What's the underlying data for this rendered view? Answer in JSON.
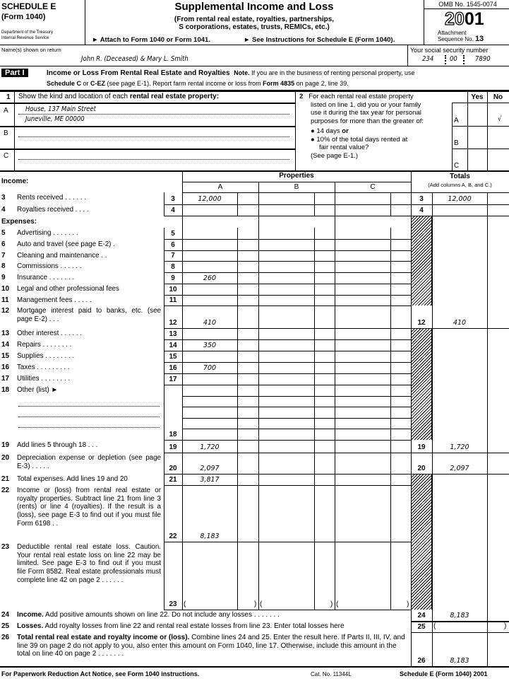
{
  "header": {
    "schedule": "SCHEDULE E",
    "form": "(Form 1040)",
    "dept1": "Department of the Treasury",
    "dept2": "Internal Revenue Service",
    "title": "Supplemental Income and Loss",
    "subtitle1": "(From rental real estate, royalties, partnerships,",
    "subtitle2": "S corporations, estates, trusts, REMICs, etc.)",
    "attach": "► Attach to Form 1040 or Form 1041.",
    "see": "► See Instructions for Schedule E (Form 1040).",
    "omb": "OMB No. 1545-0074",
    "year_outline": "20",
    "year_bold": "01",
    "seq_label1": "Attachment",
    "seq_label2": "Sequence No.",
    "seq_no": "13"
  },
  "taxpayer": {
    "name_label": "Name(s) shown on return",
    "name": "John R. (Deceased) & Mary L. Smith",
    "ssn_label": "Your social security number",
    "ssn1": "234",
    "ssn2": "00",
    "ssn3": "7890"
  },
  "part1": {
    "badge": "Part I",
    "title": "Income or Loss From Rental Real Estate and Royalties",
    "note_b": "Note.",
    "note1": " If you are in the business of renting personal property, use",
    "note2_b1": "Schedule C",
    "note2_t1": " or ",
    "note2_b2": "C-EZ",
    "note2_t2": " (see page E-1). Report farm rental income or loss from ",
    "note2_b3": "Form 4835",
    "note2_t3": " on page 2, line 39."
  },
  "line1": {
    "num": "1",
    "text": "Show the kind and location of each ",
    "bold": "rental real estate property:",
    "rows": [
      {
        "letter": "A",
        "line1": "House, 137 Main Street",
        "line2": "Juneville, ME 00000"
      },
      {
        "letter": "B",
        "line1": "",
        "line2": ""
      },
      {
        "letter": "C",
        "line1": "",
        "line2": ""
      }
    ]
  },
  "line2": {
    "num": "2",
    "text1": "For each rental real estate property",
    "text2": "listed on line 1, did you or your family",
    "text3": "use it during the tax year for personal",
    "text4": "purposes for more than the greater of:",
    "bullet1": "● 14 days ",
    "bullet1_b": "or",
    "bullet2": "● 10% of the total days rented at",
    "bullet2b": "fair rental value?",
    "see": "(See page E-1.)",
    "yes": "Yes",
    "no": "No",
    "answers": [
      {
        "letter": "A",
        "yes": "",
        "no": "√"
      },
      {
        "letter": "B",
        "yes": "",
        "no": ""
      },
      {
        "letter": "C",
        "yes": "",
        "no": ""
      }
    ]
  },
  "columns": {
    "income": "Income:",
    "properties": "Properties",
    "a": "A",
    "b": "B",
    "c": "C",
    "totals": "Totals",
    "totals_sub": "(Add columns A, B, and C.)",
    "expenses": "Expenses:"
  },
  "lines": [
    {
      "num": "3",
      "label": "Rents received . . . . . .",
      "a": "12,000",
      "total": "12,000"
    },
    {
      "num": "4",
      "label": "Royalties received . . . .",
      "a": "",
      "total": ""
    },
    {
      "num": "5",
      "label": "Advertising . . . . . . .",
      "a": ""
    },
    {
      "num": "6",
      "label": "Auto and travel (see page E-2) .",
      "a": ""
    },
    {
      "num": "7",
      "label": "Cleaning and maintenance . .",
      "a": ""
    },
    {
      "num": "8",
      "label": "Commissions . . . . . .",
      "a": ""
    },
    {
      "num": "9",
      "label": "Insurance . . . . . . .",
      "a": "260"
    },
    {
      "num": "10",
      "label": "Legal and other professional fees",
      "a": ""
    },
    {
      "num": "11",
      "label": "Management fees . . . . .",
      "a": ""
    },
    {
      "num": "12",
      "label": "Mortgage interest paid to banks, etc. (see page E-2) . . .",
      "a": "410",
      "total": "410"
    },
    {
      "num": "13",
      "label": "Other interest . . . . . .",
      "a": ""
    },
    {
      "num": "14",
      "label": "Repairs . . . . . . . .",
      "a": "350"
    },
    {
      "num": "15",
      "label": "Supplies . . . . . . . .",
      "a": ""
    },
    {
      "num": "16",
      "label": "Taxes . . . . . . . . .",
      "a": "700"
    },
    {
      "num": "17",
      "label": "Utilities . . . . . . . .",
      "a": ""
    },
    {
      "num": "18",
      "label": "Other (list) ►",
      "a": ""
    },
    {
      "num": "19",
      "label": "Add lines 5 through 18 . . .",
      "a": "1,720",
      "total": "1,720"
    },
    {
      "num": "20",
      "label": "Depreciation expense or depletion (see page E-3) . . . . .",
      "a": "2,097",
      "total": "2,097"
    },
    {
      "num": "21",
      "label": "Total expenses. Add lines 19 and 20",
      "a": "3,817"
    },
    {
      "num": "22",
      "label": "Income or (loss) from rental real estate or royalty properties. Subtract line 21 from line 3 (rents) or line 4 (royalties). If the result is a (loss), see page E-3 to find out if you must file Form 6198 . .",
      "a": "8,183"
    },
    {
      "num": "23",
      "label": "Deductible rental real estate loss. Caution. Your rental real estate loss on line 22 may be limited. See page E-3 to find out if you must file Form 8582. Real estate professionals must complete line 42 on page 2 . . . . . .",
      "a": "( )"
    },
    {
      "num": "24",
      "label_b": "Income.",
      "label": " Add positive amounts shown on line 22. Do not include any losses . . . . . . .",
      "total": "8,183"
    },
    {
      "num": "25",
      "label_b": "Losses.",
      "label": " Add royalty losses from line 22 and rental real estate losses from line 23. Enter total losses here",
      "total": "(                                )"
    },
    {
      "num": "26",
      "label_b": "Total rental real estate and royalty income or (loss).",
      "label": " Combine lines 24 and 25. Enter the result here. If Parts II, III, IV, and line 39 on page 2 do not apply to you, also enter this amount on Form 1040, line 17. Otherwise, include this amount in the total on line 40 on page 2 . . . . . . .",
      "total": "8,183"
    }
  ],
  "footer": {
    "left": "For Paperwork Reduction Act Notice, see Form 1040 instructions.",
    "cat": "Cat. No. 11344L",
    "right": "Schedule E (Form 1040) 2001"
  }
}
